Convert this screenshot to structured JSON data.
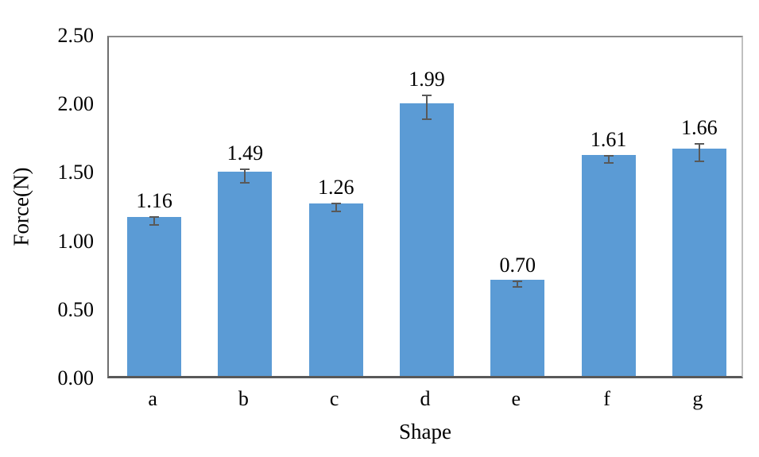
{
  "chart_data": {
    "type": "bar",
    "title": "",
    "xlabel": "Shape",
    "ylabel": "Force(N)",
    "categories": [
      "a",
      "b",
      "c",
      "d",
      "e",
      "f",
      "g"
    ],
    "values": [
      1.16,
      1.49,
      1.26,
      1.99,
      0.7,
      1.61,
      1.66
    ],
    "value_labels": [
      "1.16",
      "1.49",
      "1.26",
      "1.99",
      "0.70",
      "1.61",
      "1.66"
    ],
    "errors": [
      0.03,
      0.05,
      0.03,
      0.085,
      0.02,
      0.025,
      0.065
    ],
    "ylim": [
      0,
      2.5
    ],
    "ytick_labels": [
      "0.00",
      "0.50",
      "1.00",
      "1.50",
      "2.00",
      "2.50"
    ],
    "ytick_values": [
      0,
      0.5,
      1.0,
      1.5,
      2.0,
      2.5
    ],
    "grid": false,
    "legend": null,
    "colors": {
      "bar_fill": "#5B9BD5",
      "frame": "#898989",
      "axis_line": "#595959",
      "error_bar": "#595959",
      "text": "#000000",
      "background": "#FFFFFF"
    }
  }
}
